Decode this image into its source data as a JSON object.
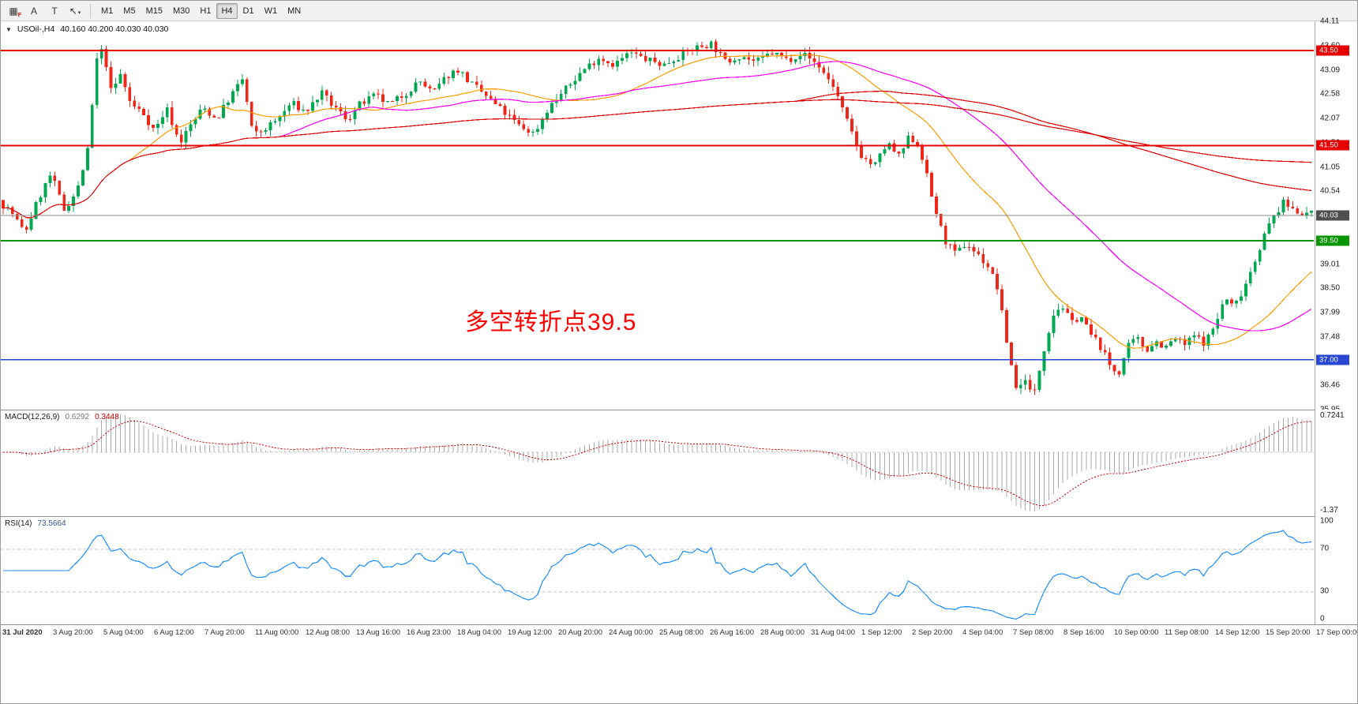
{
  "window": {
    "title_symbol": "USOil-,H4",
    "ohlc": "40.160 40.200 40.030 40.030"
  },
  "toolbar": {
    "left_buttons": [
      {
        "name": "chart-mode-icon",
        "glyph": "▦",
        "badge": "F"
      },
      {
        "name": "annotate-letter-a-button",
        "glyph": "A",
        "badge": ""
      },
      {
        "name": "text-tool-button",
        "glyph": "T",
        "badge": ""
      },
      {
        "name": "cursor-tool-button",
        "glyph": "↖",
        "badge": "",
        "caret": "▾"
      }
    ],
    "timeframes": [
      "M1",
      "M5",
      "M15",
      "M30",
      "H1",
      "H4",
      "D1",
      "W1",
      "MN"
    ],
    "active_timeframe": "H4"
  },
  "annotation": {
    "text": "多空转折点39.5",
    "color": "#ff0000"
  },
  "price_axis": {
    "labels": [
      "44.11",
      "43.60",
      "43.09",
      "42.58",
      "42.07",
      "41.56",
      "41.05",
      "40.54",
      "40.03",
      "39.52",
      "39.01",
      "38.50",
      "37.99",
      "37.48",
      "36.97",
      "36.46",
      "35.95"
    ]
  },
  "levels": [
    {
      "price": 43.5,
      "label": "43.50",
      "color": "#e60000",
      "tag_color": "#e60000",
      "width": 2
    },
    {
      "price": 41.5,
      "label": "41.50",
      "color": "#e60000",
      "tag_color": "#e60000",
      "width": 2
    },
    {
      "price": 40.03,
      "label": "40.03",
      "color": "#8c8c8c",
      "tag_color": "#4f4f4f",
      "width": 1
    },
    {
      "price": 39.5,
      "label": "39.50",
      "color": "#089600",
      "tag_color": "#089600",
      "width": 1.6
    },
    {
      "price": 37.0,
      "label": "37.00",
      "color": "#2747d4",
      "tag_color": "#2747d4",
      "width": 1.6
    }
  ],
  "macd": {
    "name": "MACD(12,26,9)",
    "value_main": "0.6292",
    "value_signal": "0.3448",
    "axis_top": "0.7241",
    "axis_bottom": "-1.37"
  },
  "rsi": {
    "name": "RSI(14)",
    "value": "73.5664",
    "axis": [
      "100",
      "70",
      "30",
      "0"
    ],
    "level_lines": [
      70,
      30
    ]
  },
  "time_axis": [
    "31 Jul 2020",
    "3 Aug 20:00",
    "5 Aug 04:00",
    "6 Aug 12:00",
    "7 Aug 20:00",
    "11 Aug 00:00",
    "12 Aug 08:00",
    "13 Aug 16:00",
    "16 Aug 23:00",
    "18 Aug 04:00",
    "19 Aug 12:00",
    "20 Aug 20:00",
    "24 Aug 00:00",
    "25 Aug 08:00",
    "26 Aug 16:00",
    "28 Aug 00:00",
    "31 Aug 04:00",
    "1 Sep 12:00",
    "2 Sep 20:00",
    "4 Sep 04:00",
    "7 Sep 08:00",
    "8 Sep 16:00",
    "10 Sep 00:00",
    "11 Sep 08:00",
    "14 Sep 12:00",
    "15 Sep 20:00",
    "17 Sep 00:00"
  ],
  "chart_data": {
    "type": "candlestick",
    "symbol": "USOil",
    "timeframe": "H4",
    "title": "USOil-,H4",
    "ylim": [
      35.95,
      44.11
    ],
    "bar_count": 280,
    "up_color": "#00a94f",
    "down_color": "#f02618",
    "current_price": 40.03,
    "horizontal_lines": [
      43.5,
      41.5,
      39.5,
      37.0
    ],
    "annotation_text": "多空转折点39.5",
    "price_anchors": [
      [
        0.0,
        40.35
      ],
      [
        0.01,
        40.1
      ],
      [
        0.02,
        39.65
      ],
      [
        0.03,
        40.35
      ],
      [
        0.04,
        40.9
      ],
      [
        0.05,
        40.15
      ],
      [
        0.06,
        40.55
      ],
      [
        0.068,
        41.4
      ],
      [
        0.075,
        43.3
      ],
      [
        0.08,
        43.55
      ],
      [
        0.086,
        42.6
      ],
      [
        0.093,
        43.0
      ],
      [
        0.101,
        42.35
      ],
      [
        0.11,
        42.2
      ],
      [
        0.119,
        41.8
      ],
      [
        0.128,
        42.3
      ],
      [
        0.138,
        41.55
      ],
      [
        0.147,
        41.95
      ],
      [
        0.156,
        42.3
      ],
      [
        0.166,
        42.05
      ],
      [
        0.176,
        42.5
      ],
      [
        0.186,
        42.9
      ],
      [
        0.194,
        41.7
      ],
      [
        0.203,
        41.85
      ],
      [
        0.213,
        42.05
      ],
      [
        0.223,
        42.4
      ],
      [
        0.234,
        42.2
      ],
      [
        0.246,
        42.6
      ],
      [
        0.256,
        42.3
      ],
      [
        0.266,
        42.05
      ],
      [
        0.275,
        42.35
      ],
      [
        0.287,
        42.55
      ],
      [
        0.298,
        42.35
      ],
      [
        0.31,
        42.6
      ],
      [
        0.321,
        42.85
      ],
      [
        0.331,
        42.6
      ],
      [
        0.341,
        42.95
      ],
      [
        0.35,
        43.1
      ],
      [
        0.36,
        42.8
      ],
      [
        0.371,
        42.55
      ],
      [
        0.383,
        42.25
      ],
      [
        0.397,
        41.9
      ],
      [
        0.408,
        41.75
      ],
      [
        0.419,
        42.3
      ],
      [
        0.431,
        42.65
      ],
      [
        0.444,
        43.05
      ],
      [
        0.457,
        43.35
      ],
      [
        0.469,
        43.2
      ],
      [
        0.481,
        43.45
      ],
      [
        0.494,
        43.3
      ],
      [
        0.507,
        43.2
      ],
      [
        0.519,
        43.4
      ],
      [
        0.531,
        43.55
      ],
      [
        0.543,
        43.65
      ],
      [
        0.554,
        43.25
      ],
      [
        0.565,
        43.4
      ],
      [
        0.577,
        43.25
      ],
      [
        0.589,
        43.45
      ],
      [
        0.601,
        43.3
      ],
      [
        0.612,
        43.45
      ],
      [
        0.624,
        43.2
      ],
      [
        0.636,
        42.75
      ],
      [
        0.647,
        41.95
      ],
      [
        0.657,
        41.3
      ],
      [
        0.667,
        41.05
      ],
      [
        0.677,
        41.55
      ],
      [
        0.686,
        41.25
      ],
      [
        0.694,
        41.7
      ],
      [
        0.702,
        41.45
      ],
      [
        0.711,
        40.4
      ],
      [
        0.72,
        39.55
      ],
      [
        0.729,
        39.2
      ],
      [
        0.737,
        39.45
      ],
      [
        0.746,
        39.2
      ],
      [
        0.754,
        38.95
      ],
      [
        0.761,
        38.5
      ],
      [
        0.769,
        37.2
      ],
      [
        0.776,
        36.3
      ],
      [
        0.782,
        36.65
      ],
      [
        0.788,
        36.15
      ],
      [
        0.796,
        37.2
      ],
      [
        0.803,
        37.95
      ],
      [
        0.81,
        38.15
      ],
      [
        0.817,
        37.75
      ],
      [
        0.824,
        37.95
      ],
      [
        0.831,
        37.55
      ],
      [
        0.839,
        37.3
      ],
      [
        0.847,
        36.85
      ],
      [
        0.853,
        36.7
      ],
      [
        0.86,
        37.25
      ],
      [
        0.867,
        37.45
      ],
      [
        0.874,
        37.2
      ],
      [
        0.881,
        37.4
      ],
      [
        0.889,
        37.25
      ],
      [
        0.896,
        37.45
      ],
      [
        0.903,
        37.3
      ],
      [
        0.911,
        37.5
      ],
      [
        0.919,
        37.35
      ],
      [
        0.927,
        37.75
      ],
      [
        0.934,
        38.3
      ],
      [
        0.941,
        38.1
      ],
      [
        0.949,
        38.55
      ],
      [
        0.957,
        39.1
      ],
      [
        0.964,
        39.6
      ],
      [
        0.971,
        40.0
      ],
      [
        0.979,
        40.3
      ],
      [
        0.987,
        40.15
      ],
      [
        1.0,
        40.05
      ]
    ],
    "moving_averages": [
      {
        "name": "fast",
        "period": 28,
        "color": "#ff9c00"
      },
      {
        "name": "medium",
        "period": 60,
        "color": "#ff00ff"
      },
      {
        "name": "slow",
        "period": 170,
        "color": "#e00000"
      },
      {
        "name": "slowest",
        "period": 340,
        "color": "#e00000"
      }
    ],
    "indicators": [
      {
        "name": "MACD",
        "params": [
          12,
          26,
          9
        ],
        "current_main": 0.6292,
        "current_signal": 0.3448,
        "axis_max": 0.7241,
        "axis_min": -1.37
      },
      {
        "name": "RSI",
        "params": [
          14
        ],
        "current": 73.5664,
        "levels": [
          70,
          30
        ],
        "range": [
          0,
          100
        ]
      }
    ]
  }
}
